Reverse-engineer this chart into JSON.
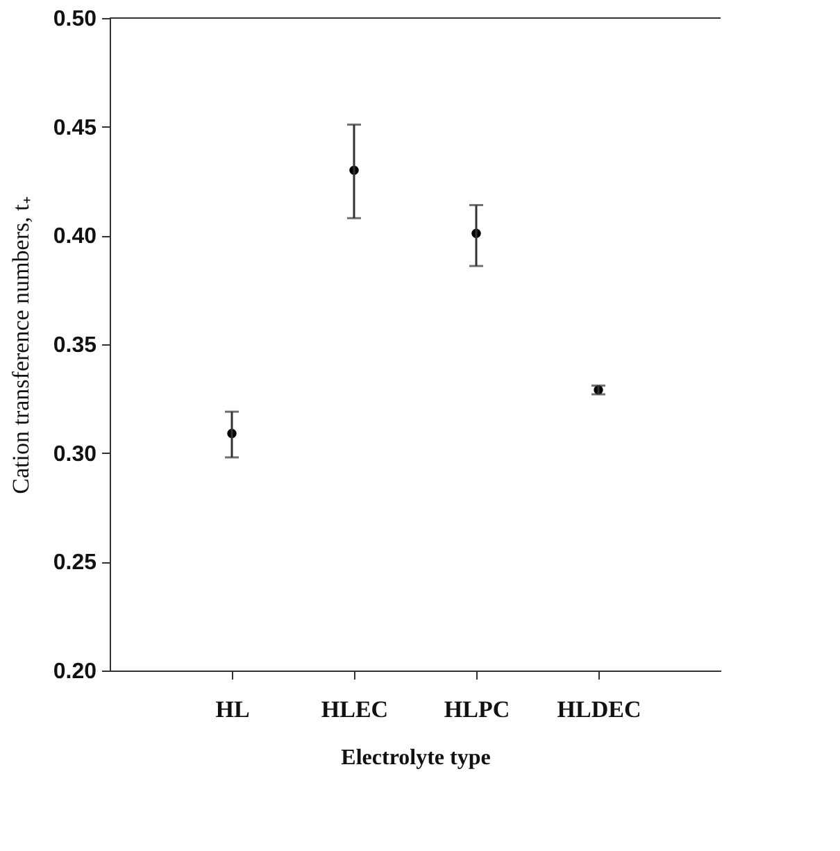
{
  "chart_data": {
    "type": "scatter",
    "xlabel": "Electrolyte type",
    "ylabel": "Cation transference numbers, t₊",
    "categories": [
      "HL",
      "HLEC",
      "HLPC",
      "HLDEC"
    ],
    "values": [
      0.309,
      0.43,
      0.401,
      0.329
    ],
    "errors": [
      [
        0.298,
        0.319
      ],
      [
        0.408,
        0.451
      ],
      [
        0.386,
        0.414
      ],
      [
        0.327,
        0.331
      ]
    ],
    "color": "#000000",
    "ylim": [
      0.2,
      0.5
    ],
    "yticks": [
      {
        "value": 0.2,
        "label": "0.20"
      },
      {
        "value": 0.25,
        "label": "0.25"
      },
      {
        "value": 0.3,
        "label": "0.30"
      },
      {
        "value": 0.35,
        "label": "0.35"
      },
      {
        "value": 0.4,
        "label": "0.40"
      },
      {
        "value": 0.45,
        "label": "0.45"
      },
      {
        "value": 0.5,
        "label": "0.50"
      }
    ],
    "grid": false
  }
}
